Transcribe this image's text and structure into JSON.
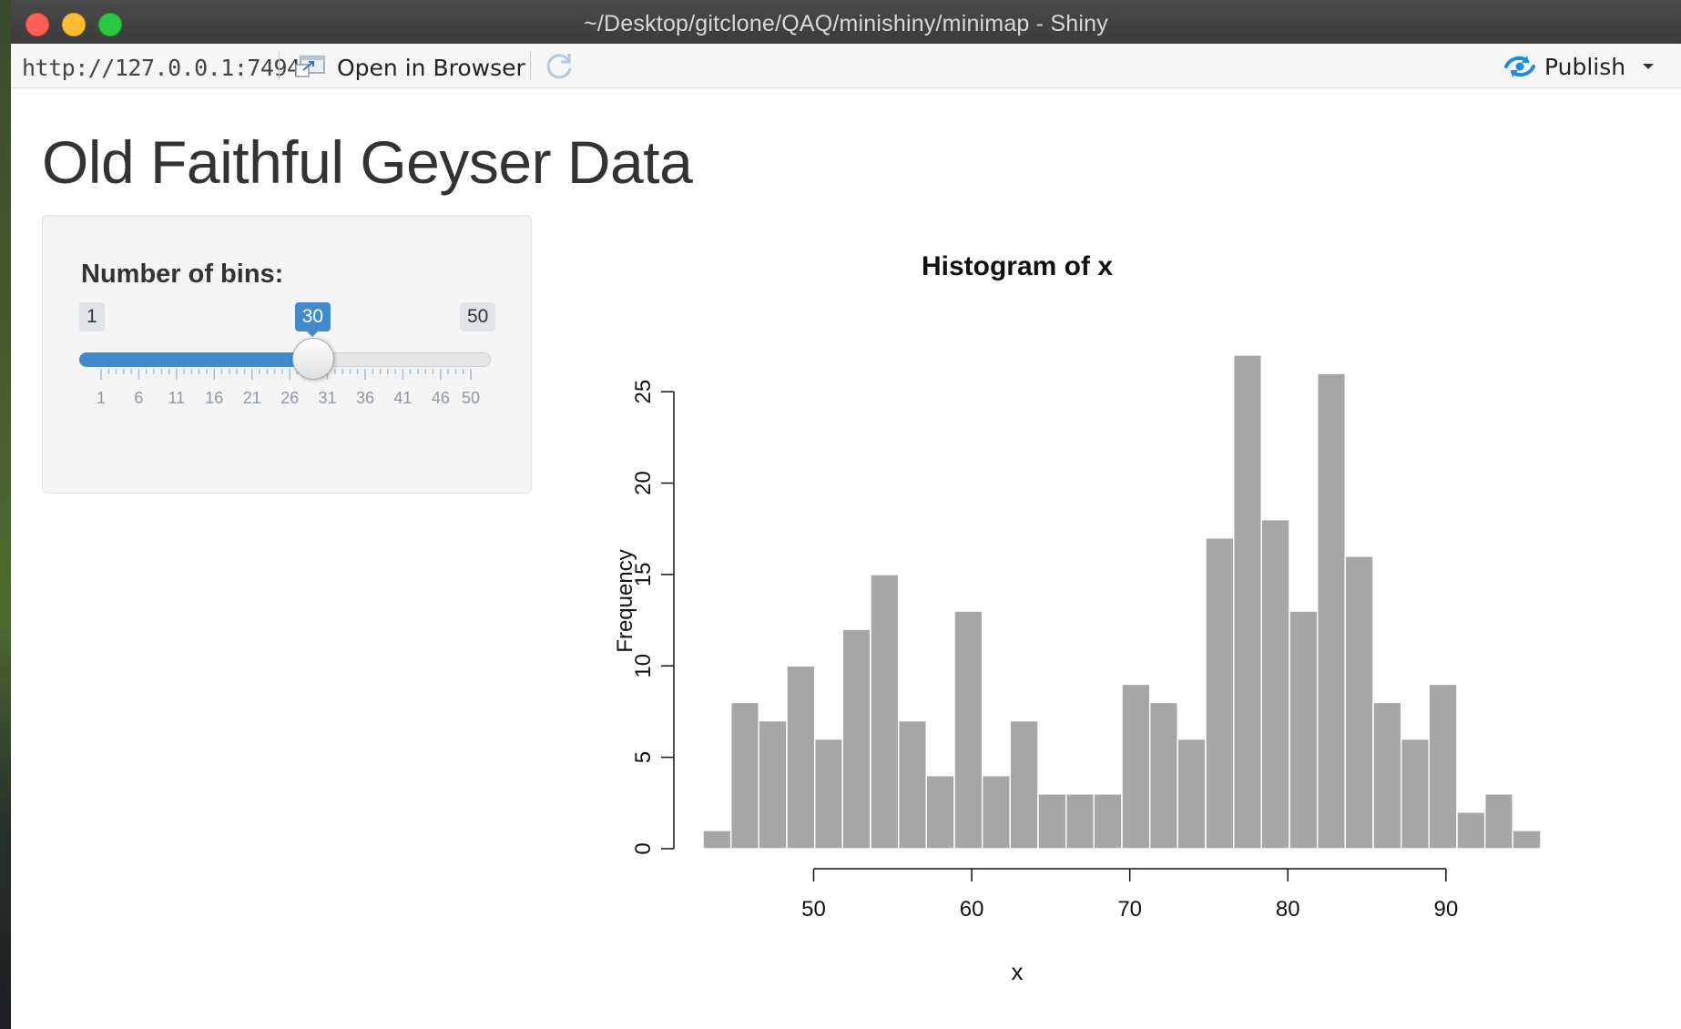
{
  "window": {
    "title": "~/Desktop/gitclone/QAQ/minishiny/minimap - Shiny"
  },
  "toolbar": {
    "url": "http://127.0.0.1:7494",
    "open_in_browser": "Open in Browser",
    "publish": "Publish"
  },
  "page": {
    "title": "Old Faithful Geyser Data"
  },
  "slider": {
    "label": "Number of bins:",
    "min": 1,
    "max": 50,
    "value": 30,
    "min_label": "1",
    "max_label": "50",
    "value_label": "30",
    "grid_labels": [
      "1",
      "6",
      "11",
      "16",
      "21",
      "26",
      "31",
      "36",
      "41",
      "46",
      "50"
    ],
    "accent_color": "#428bca"
  },
  "chart_data": {
    "type": "bar",
    "title": "Histogram of x",
    "xlabel": "x",
    "ylabel": "Frequency",
    "bin_edges": [
      43.0,
      44.77,
      46.53,
      48.3,
      50.07,
      51.83,
      53.6,
      55.37,
      57.13,
      58.9,
      60.67,
      62.43,
      64.2,
      65.97,
      67.73,
      69.5,
      71.27,
      73.03,
      74.8,
      76.57,
      78.33,
      80.1,
      81.87,
      83.63,
      85.4,
      87.17,
      88.93,
      90.7,
      92.47,
      94.23,
      96.0
    ],
    "values": [
      1,
      8,
      7,
      10,
      6,
      12,
      15,
      7,
      4,
      13,
      4,
      7,
      3,
      3,
      3,
      9,
      8,
      6,
      17,
      27,
      18,
      13,
      26,
      16,
      8,
      6,
      9,
      2,
      3,
      1
    ],
    "xlim": [
      43,
      96
    ],
    "ylim": [
      0,
      27
    ],
    "x_ticks": [
      50,
      60,
      70,
      80,
      90
    ],
    "y_ticks": [
      0,
      5,
      10,
      15,
      20,
      25
    ],
    "bar_color": "#a6a6a6"
  }
}
